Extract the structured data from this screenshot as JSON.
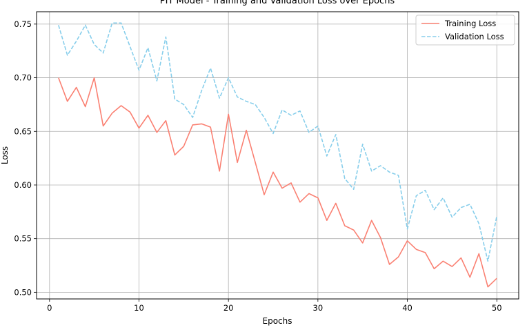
{
  "chart_data": {
    "type": "line",
    "title": "PIT Model - Training and Validation Loss over Epochs",
    "xlabel": "Epochs",
    "ylabel": "Loss",
    "xlim": [
      -1.45,
      52.45
    ],
    "ylim": [
      0.4938,
      0.7615
    ],
    "xticks": [
      0,
      10,
      20,
      30,
      40,
      50
    ],
    "yticks": [
      0.5,
      0.55,
      0.6,
      0.65,
      0.7,
      0.75
    ],
    "ytick_labels": [
      "0.50",
      "0.55",
      "0.60",
      "0.65",
      "0.70",
      "0.75"
    ],
    "grid": true,
    "legend_position": "upper right",
    "x": [
      1,
      2,
      3,
      4,
      5,
      6,
      7,
      8,
      9,
      10,
      11,
      12,
      13,
      14,
      15,
      16,
      17,
      18,
      19,
      20,
      21,
      22,
      23,
      24,
      25,
      26,
      27,
      28,
      29,
      30,
      31,
      32,
      33,
      34,
      35,
      36,
      37,
      38,
      39,
      40,
      41,
      42,
      43,
      44,
      45,
      46,
      47,
      48,
      49,
      50
    ],
    "series": [
      {
        "name": "Training Loss",
        "color": "#fa8072",
        "style": "solid",
        "values": [
          0.7,
          0.678,
          0.691,
          0.673,
          0.7,
          0.655,
          0.667,
          0.674,
          0.668,
          0.653,
          0.665,
          0.649,
          0.66,
          0.628,
          0.636,
          0.656,
          0.657,
          0.654,
          0.613,
          0.666,
          0.621,
          0.651,
          0.621,
          0.591,
          0.612,
          0.597,
          0.602,
          0.584,
          0.592,
          0.588,
          0.567,
          0.583,
          0.562,
          0.558,
          0.546,
          0.567,
          0.551,
          0.526,
          0.533,
          0.548,
          0.54,
          0.537,
          0.522,
          0.529,
          0.524,
          0.532,
          0.514,
          0.536,
          0.505,
          0.513
        ]
      },
      {
        "name": "Validation Loss",
        "color": "#87ceeb",
        "style": "dashed",
        "values": [
          0.749,
          0.721,
          0.734,
          0.749,
          0.731,
          0.723,
          0.751,
          0.751,
          0.729,
          0.707,
          0.728,
          0.697,
          0.738,
          0.68,
          0.675,
          0.663,
          0.688,
          0.709,
          0.681,
          0.7,
          0.682,
          0.678,
          0.675,
          0.663,
          0.648,
          0.67,
          0.665,
          0.669,
          0.649,
          0.655,
          0.627,
          0.647,
          0.606,
          0.596,
          0.638,
          0.613,
          0.618,
          0.612,
          0.609,
          0.559,
          0.59,
          0.595,
          0.577,
          0.588,
          0.57,
          0.579,
          0.582,
          0.564,
          0.529,
          0.571
        ]
      }
    ]
  }
}
